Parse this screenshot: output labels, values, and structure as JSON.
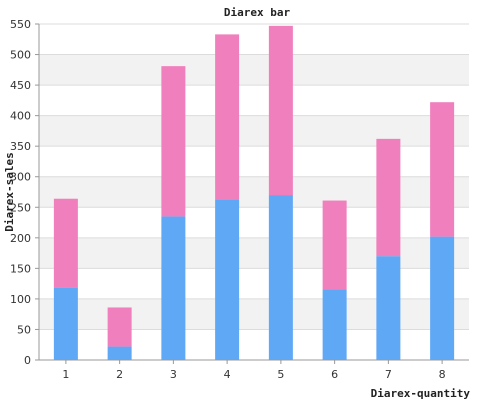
{
  "chart_data": {
    "type": "bar",
    "stacked": true,
    "title": "Diarex bar",
    "xlabel": "Diarex-quantity",
    "ylabel": "Diarex-sales",
    "categories": [
      "1",
      "2",
      "3",
      "4",
      "5",
      "6",
      "7",
      "8"
    ],
    "series": [
      {
        "values": [
          119,
          22,
          235,
          263,
          270,
          116,
          170,
          202
        ]
      },
      {
        "values": [
          145,
          64,
          246,
          270,
          277,
          145,
          192,
          220
        ]
      }
    ],
    "totals": [
      264,
      86,
      481,
      533,
      547,
      261,
      362,
      422
    ],
    "ylim": [
      0,
      550
    ],
    "yticks": [
      0,
      50,
      100,
      150,
      200,
      250,
      300,
      350,
      400,
      450,
      500,
      550
    ],
    "grid": true,
    "legend": "none"
  },
  "colors": {
    "series": [
      "#5fa8f5",
      "#f07fbd"
    ],
    "band": "#f2f2f2",
    "grid": "#dcdcdc",
    "axis": "#999999"
  }
}
